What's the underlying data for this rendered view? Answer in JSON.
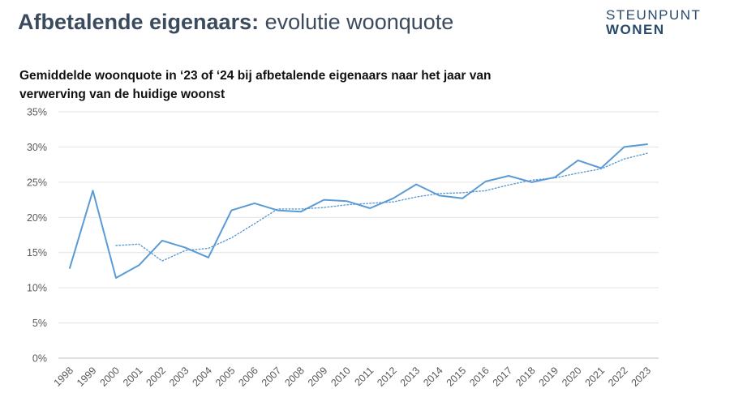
{
  "slide": {
    "title_bold": "Afbetalende eigenaars:",
    "title_rest": "evolutie woonquote",
    "logo_line1": "STEUNPUNT",
    "logo_line2": "WONEN"
  },
  "chart_data": {
    "type": "line",
    "title": "Gemiddelde woonquote in ‘23 of ‘24 bij afbetalende eigenaars naar het jaar van verwerving van de huidige woonst",
    "xlabel": "",
    "ylabel": "",
    "categories": [
      "1998",
      "1999",
      "2000",
      "2001",
      "2002",
      "2003",
      "2004",
      "2005",
      "2006",
      "2007",
      "2008",
      "2009",
      "2010",
      "2011",
      "2012",
      "2013",
      "2014",
      "2015",
      "2016",
      "2017",
      "2018",
      "2019",
      "2020",
      "2021",
      "2022",
      "2023"
    ],
    "y_ticks": [
      "0%",
      "5%",
      "10%",
      "15%",
      "20%",
      "25%",
      "30%",
      "35%"
    ],
    "ylim": [
      0,
      35
    ],
    "grid": true,
    "legend": "none",
    "series": [
      {
        "style": "solid",
        "color": "#5b9bd5",
        "values": [
          12.8,
          23.8,
          11.4,
          13.2,
          16.7,
          15.7,
          14.3,
          21.0,
          22.0,
          21.0,
          20.8,
          22.5,
          22.3,
          21.3,
          22.7,
          24.7,
          23.1,
          22.7,
          25.1,
          25.9,
          25.0,
          25.7,
          28.1,
          27.0,
          30.0,
          30.4
        ]
      },
      {
        "style": "dotted",
        "color": "#5b9bd5",
        "values": [
          null,
          null,
          16.0,
          16.2,
          13.8,
          15.3,
          15.6,
          17.1,
          19.1,
          21.2,
          21.2,
          21.4,
          21.8,
          22.0,
          22.2,
          22.9,
          23.4,
          23.5,
          23.8,
          24.6,
          25.3,
          25.6,
          26.3,
          26.9,
          28.3,
          29.1
        ]
      }
    ]
  }
}
